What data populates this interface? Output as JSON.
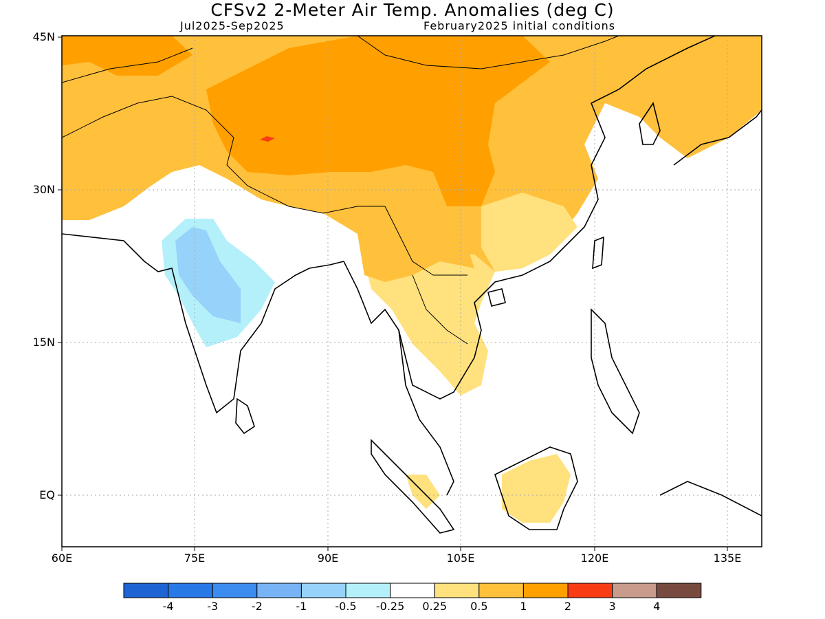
{
  "title": "CFSv2 2-Meter Air Temp. Anomalies (deg C)",
  "period": "Jul2025-Sep2025",
  "init": "February2025 initial conditions",
  "lat_labels": [
    "45N",
    "30N",
    "15N",
    "EQ"
  ],
  "lon_labels": [
    "60E",
    "75E",
    "90E",
    "105E",
    "120E",
    "135E"
  ],
  "colorbar": {
    "colors": [
      "#1e64d2",
      "#2878e6",
      "#3c8cf0",
      "#78b4f5",
      "#96d2fa",
      "#b4f0fa",
      "#ffffff",
      "#ffe17d",
      "#ffc03c",
      "#ffa000",
      "#fa3c14",
      "#c89b8c",
      "#784b41"
    ],
    "labels": [
      "-4",
      "-3",
      "-2",
      "-1",
      "-0.5",
      "-0.25",
      "0.25",
      "0.5",
      "1",
      "2",
      "3",
      "4"
    ]
  }
}
